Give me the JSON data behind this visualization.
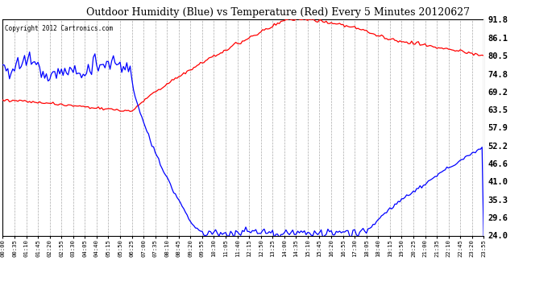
{
  "title": "Outdoor Humidity (Blue) vs Temperature (Red) Every 5 Minutes 20120627",
  "copyright": "Copyright 2012 Cartronics.com",
  "right_yticks": [
    24.0,
    29.6,
    35.3,
    41.0,
    46.6,
    52.2,
    57.9,
    63.5,
    69.2,
    74.8,
    80.5,
    86.1,
    91.8
  ],
  "ylim": [
    24.0,
    91.8
  ],
  "bg_color": "#ffffff",
  "plot_bg": "#ffffff",
  "grid_color": "#aaaaaa",
  "humidity_color": "blue",
  "temp_color": "red",
  "x_tick_labels": [
    "00:00",
    "00:35",
    "01:10",
    "01:45",
    "02:20",
    "02:55",
    "03:30",
    "04:05",
    "04:40",
    "05:15",
    "05:50",
    "06:25",
    "07:00",
    "07:35",
    "08:10",
    "08:45",
    "09:20",
    "09:55",
    "10:30",
    "11:05",
    "11:40",
    "12:15",
    "12:50",
    "13:25",
    "14:00",
    "14:35",
    "15:10",
    "15:45",
    "16:20",
    "16:55",
    "17:30",
    "18:05",
    "18:40",
    "19:15",
    "19:50",
    "20:25",
    "21:00",
    "21:35",
    "22:10",
    "22:45",
    "23:20",
    "23:55"
  ],
  "n_points": 288
}
